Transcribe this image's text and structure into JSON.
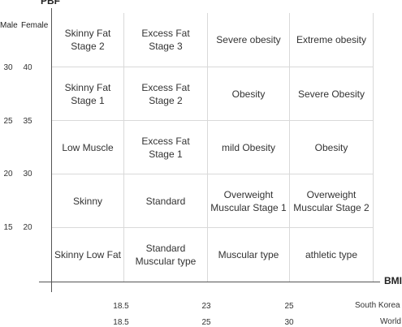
{
  "y_axis_title": "PBF",
  "x_axis_title": "BMI",
  "column_headers": {
    "male": "Male",
    "female": "Female"
  },
  "pbf_ticks": [
    {
      "male": "30",
      "female": "40"
    },
    {
      "male": "25",
      "female": "35"
    },
    {
      "male": "20",
      "female": "30"
    },
    {
      "male": "15",
      "female": "20"
    }
  ],
  "cells": [
    [
      "Skinny Fat\nStage 2",
      "Excess Fat\nStage 3",
      "Severe obesity",
      "Extreme obesity"
    ],
    [
      "Skinny Fat\nStage 1",
      "Excess Fat\nStage 2",
      "Obesity",
      "Severe Obesity"
    ],
    [
      "Low Muscle",
      "Excess Fat\nStage 1",
      "mild Obesity",
      "Obesity"
    ],
    [
      "Skinny",
      "Standard",
      "Overweight\nMuscular Stage 1",
      "Overweight\nMuscular Stage 2"
    ],
    [
      "Skinny Low Fat",
      "Standard\nMuscular type",
      "Muscular type",
      "athletic type"
    ]
  ],
  "bmi_scales": [
    {
      "name": "South Korea",
      "ticks": [
        "18.5",
        "23",
        "25"
      ]
    },
    {
      "name": "World",
      "ticks": [
        "18.5",
        "25",
        "30"
      ]
    }
  ]
}
